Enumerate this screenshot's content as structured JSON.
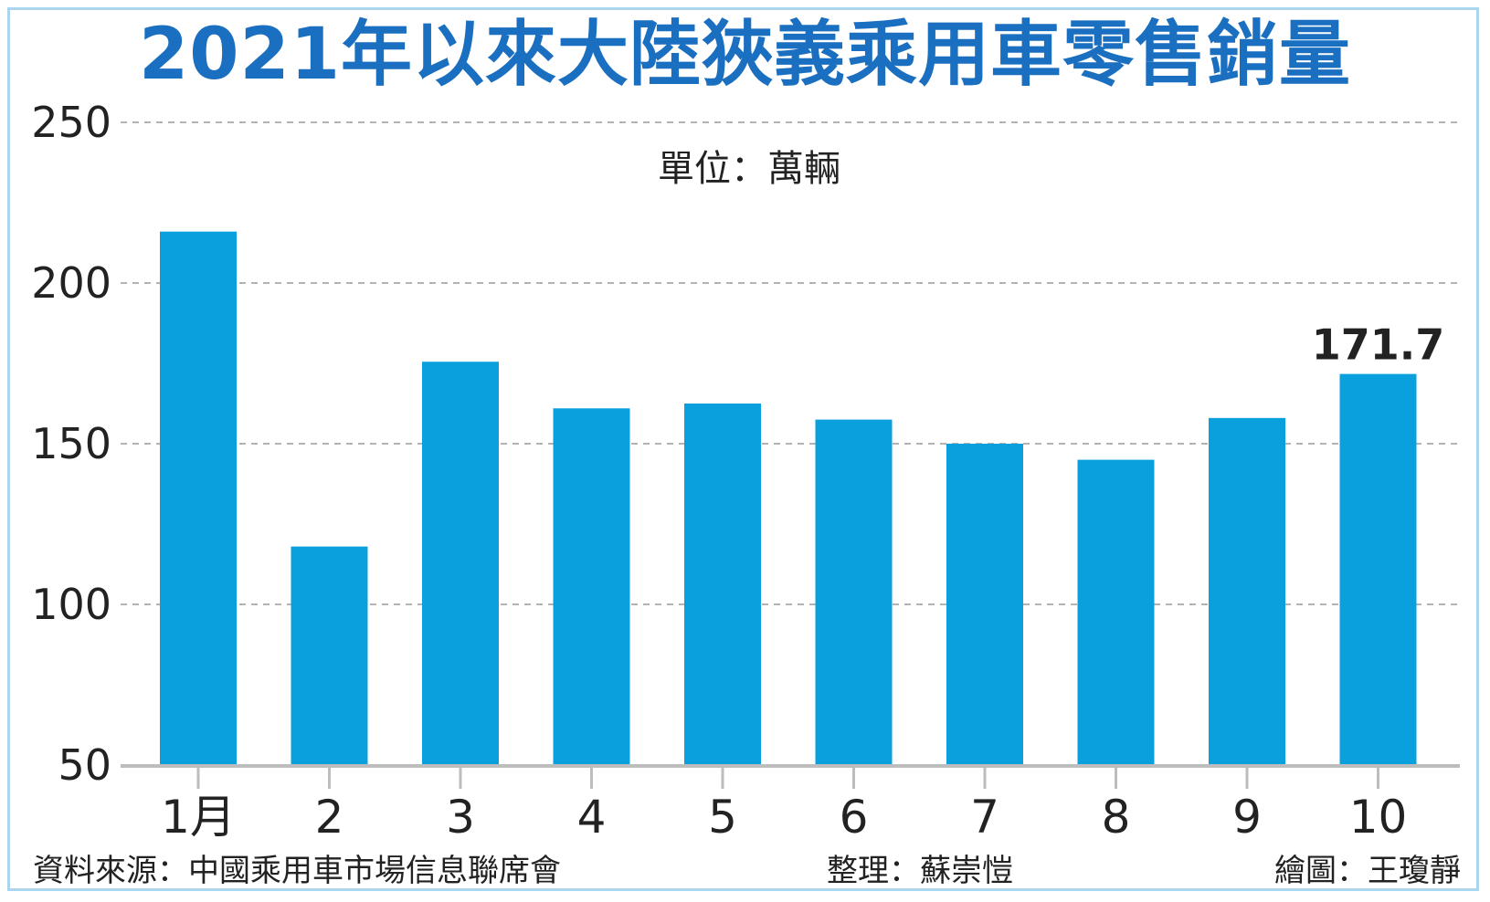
{
  "title": "2021年以來大陸狹義乘用車零售銷量",
  "unit": "單位：萬輛",
  "footer": {
    "source": "資料來源：中國乘用車市場信息聯席會",
    "editor": "整理：蘇崇愷",
    "illustrator": "繪圖：王瓊靜"
  },
  "colors": {
    "bar": "#0aa0de",
    "title": "#1a6fc0",
    "grid": "#9a9a9a",
    "axis": "#bdbdbd",
    "border": "#a9d6ee"
  },
  "chart_data": {
    "type": "bar",
    "title": "2021年以來大陸狹義乘用車零售銷量",
    "xlabel": "",
    "ylabel": "",
    "unit": "單位：萬輛",
    "categories": [
      "1月",
      "2",
      "3",
      "4",
      "5",
      "6",
      "7",
      "8",
      "9",
      "10"
    ],
    "values": [
      216,
      118,
      175.5,
      161,
      162.5,
      157.5,
      150,
      145,
      158,
      171.7
    ],
    "data_labels": [
      {
        "index": 9,
        "text": "171.7"
      }
    ],
    "ylim": [
      50,
      250
    ],
    "yticks": [
      "50",
      "100",
      "150",
      "200",
      "250"
    ],
    "grid": true,
    "legend": "none"
  }
}
